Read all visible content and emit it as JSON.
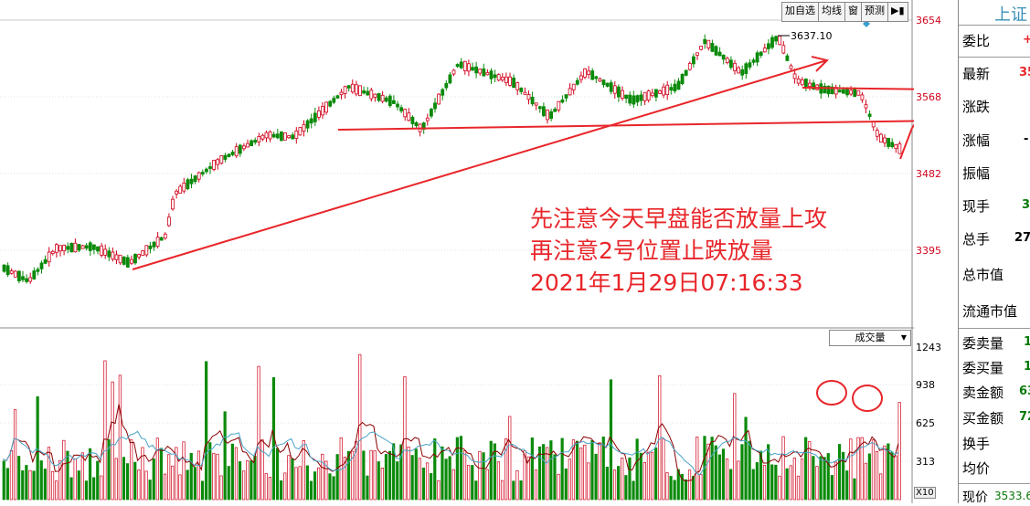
{
  "toolbar": {
    "buttons": [
      "加自选",
      "均线",
      "窗",
      "预测"
    ],
    "more_icon": "right-arrow-icon"
  },
  "price_axis": [
    "3654",
    "3568",
    "3482",
    "3395"
  ],
  "volume_axis": [
    "1243",
    "938",
    "625",
    "313"
  ],
  "volume_dropdown": "成交量",
  "scale_badge": "X10",
  "peak_label": "3637.10",
  "annotation": {
    "line1": "先注意今天早盘能否放量上攻",
    "line2": "再注意2号位置止跌放量",
    "line3": "2021年1月29日07:16:33"
  },
  "right_panel": {
    "title": "上证",
    "rows": [
      {
        "label": "委比",
        "value": "+",
        "color": "#e8262a"
      },
      {
        "label": "最新",
        "value": "35",
        "color": "#e8262a"
      },
      {
        "label": "涨跌",
        "value": "",
        "color": "#000000"
      },
      {
        "label": "涨幅",
        "value": "-",
        "color": "#000000"
      },
      {
        "label": "振幅",
        "value": "",
        "color": "#000000"
      },
      {
        "label": "现手",
        "value": "3",
        "color": "#0a7a0a"
      },
      {
        "label": "总手",
        "value": "27",
        "color": "#000000"
      },
      {
        "label": "总市值",
        "value": "",
        "color": "#000000"
      },
      {
        "label": "流通市值",
        "value": "",
        "color": "#000000"
      },
      {
        "label": "委卖量",
        "value": "1",
        "color": "#0a7a0a"
      },
      {
        "label": "委买量",
        "value": "1",
        "color": "#0a7a0a"
      },
      {
        "label": "卖金额",
        "value": "63",
        "color": "#0a7a0a"
      },
      {
        "label": "买金额",
        "value": "72",
        "color": "#0a7a0a"
      },
      {
        "label": "换手",
        "value": "",
        "color": "#000000"
      },
      {
        "label": "均价",
        "value": "",
        "color": "#000000"
      },
      {
        "label": "现价",
        "value": "3533.6",
        "color": "#0a7a0a"
      }
    ]
  },
  "colors": {
    "up": "#d0021b",
    "down": "#0a8a0a",
    "annotation": "#e8262a",
    "ma": "#4aa3c8"
  }
}
